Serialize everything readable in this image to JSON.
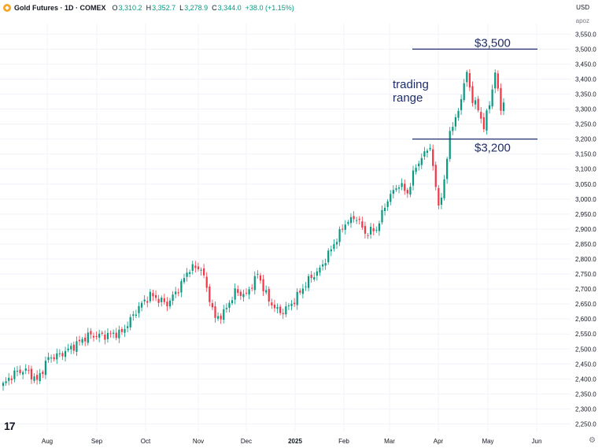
{
  "header": {
    "title": "Gold Futures · 1D · COMEX",
    "ohlc": [
      {
        "label": "O",
        "value": "3,310.2"
      },
      {
        "label": "H",
        "value": "3,352.7"
      },
      {
        "label": "L",
        "value": "3,278.9"
      },
      {
        "label": "C",
        "value": "3,344.0"
      }
    ],
    "change": "+38.0 (+1.15%)"
  },
  "axis": {
    "currency": "USD",
    "unit": "apoz"
  },
  "colors": {
    "up": "#089981",
    "down": "#f23645",
    "grid": "#f0f3fa",
    "annotation": "#1f2d6b",
    "text": "#131722"
  },
  "chart_data": {
    "type": "candlestick",
    "y_range": [
      2225,
      3585
    ],
    "y_ticks": [
      "3,550.0",
      "3,500.0",
      "3,450.0",
      "3,400.0",
      "3,350.0",
      "3,300.0",
      "3,250.0",
      "3,200.0",
      "3,150.0",
      "3,100.0",
      "3,050.0",
      "3,000.0",
      "2,950.0",
      "2,900.0",
      "2,850.0",
      "2,800.0",
      "2,750.0",
      "2,700.0",
      "2,650.0",
      "2,600.0",
      "2,550.0",
      "2,500.0",
      "2,450.0",
      "2,400.0",
      "2,350.0",
      "2,300.0",
      "2,250.0"
    ],
    "x_labels": [
      "Aug",
      "Sep",
      "Oct",
      "Nov",
      "Dec",
      "2025",
      "Feb",
      "Mar",
      "Apr",
      "May",
      "Jun"
    ],
    "anchors": [
      [
        0,
        2380
      ],
      [
        4,
        2420
      ],
      [
        8,
        2430
      ],
      [
        12,
        2395
      ],
      [
        16,
        2470
      ],
      [
        20,
        2480
      ],
      [
        25,
        2510
      ],
      [
        30,
        2545
      ],
      [
        36,
        2545
      ],
      [
        42,
        2555
      ],
      [
        48,
        2640
      ],
      [
        52,
        2680
      ],
      [
        58,
        2650
      ],
      [
        62,
        2700
      ],
      [
        66,
        2770
      ],
      [
        70,
        2770
      ],
      [
        75,
        2600
      ],
      [
        78,
        2620
      ],
      [
        82,
        2690
      ],
      [
        86,
        2680
      ],
      [
        90,
        2750
      ],
      [
        94,
        2660
      ],
      [
        98,
        2620
      ],
      [
        102,
        2650
      ],
      [
        108,
        2730
      ],
      [
        112,
        2765
      ],
      [
        117,
        2850
      ],
      [
        121,
        2920
      ],
      [
        125,
        2940
      ],
      [
        128,
        2885
      ],
      [
        132,
        2900
      ],
      [
        136,
        3000
      ],
      [
        140,
        3050
      ],
      [
        143,
        3020
      ],
      [
        146,
        3110
      ],
      [
        149,
        3150
      ],
      [
        151,
        3180
      ],
      [
        152,
        3100
      ],
      [
        154,
        2980
      ],
      [
        156,
        3050
      ],
      [
        158,
        3230
      ],
      [
        160,
        3260
      ],
      [
        162,
        3340
      ],
      [
        164,
        3420
      ],
      [
        166,
        3330
      ],
      [
        168,
        3300
      ],
      [
        170,
        3240
      ],
      [
        172,
        3320
      ],
      [
        174,
        3420
      ],
      [
        176,
        3300
      ],
      [
        177,
        3330
      ]
    ],
    "levels": [
      {
        "price": 3500,
        "label": "$3,500"
      },
      {
        "price": 3200,
        "label": "$3,200"
      }
    ],
    "annotation": [
      "trading",
      "range"
    ]
  }
}
